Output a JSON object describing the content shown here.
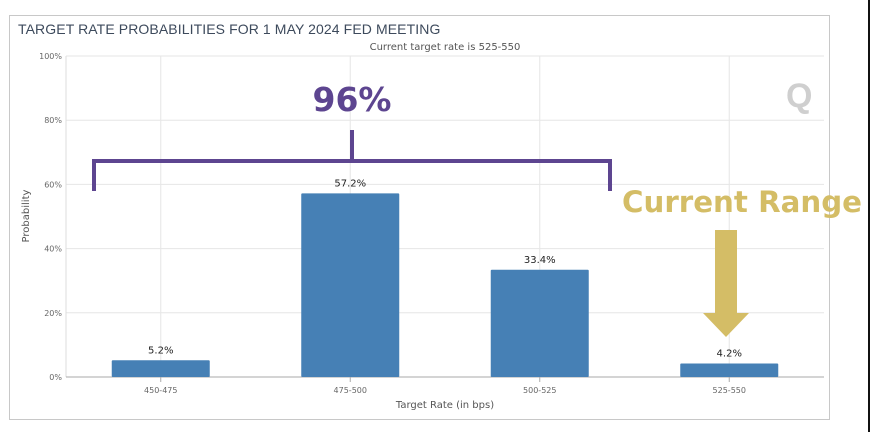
{
  "chart_data": {
    "type": "bar",
    "title": "TARGET RATE PROBABILITIES FOR 1 MAY 2024 FED MEETING",
    "subtitle": "Current target rate is 525-550",
    "categories": [
      "450-475",
      "475-500",
      "500-525",
      "525-550"
    ],
    "values": [
      5.2,
      57.2,
      33.4,
      4.2
    ],
    "data_labels": [
      "5.2%",
      "57.2%",
      "33.4%",
      "4.2%"
    ],
    "xlabel": "Target Rate (in bps)",
    "ylabel": "Probability",
    "ylim": [
      0,
      100
    ],
    "yticks": [
      0,
      20,
      40,
      60,
      80,
      100
    ],
    "ytick_labels": [
      "0%",
      "20%",
      "40%",
      "60%",
      "80%",
      "100%"
    ],
    "grid": true,
    "bar_color": "#4680b5",
    "annotations": {
      "bracket_label": "96%",
      "bracket_color": "#5d4590",
      "bracket_span": [
        "450-475",
        "500-525"
      ],
      "arrow_label": "Current Range",
      "arrow_color": "#d4bd66",
      "arrow_target": "525-550"
    },
    "watermark": "Q"
  }
}
